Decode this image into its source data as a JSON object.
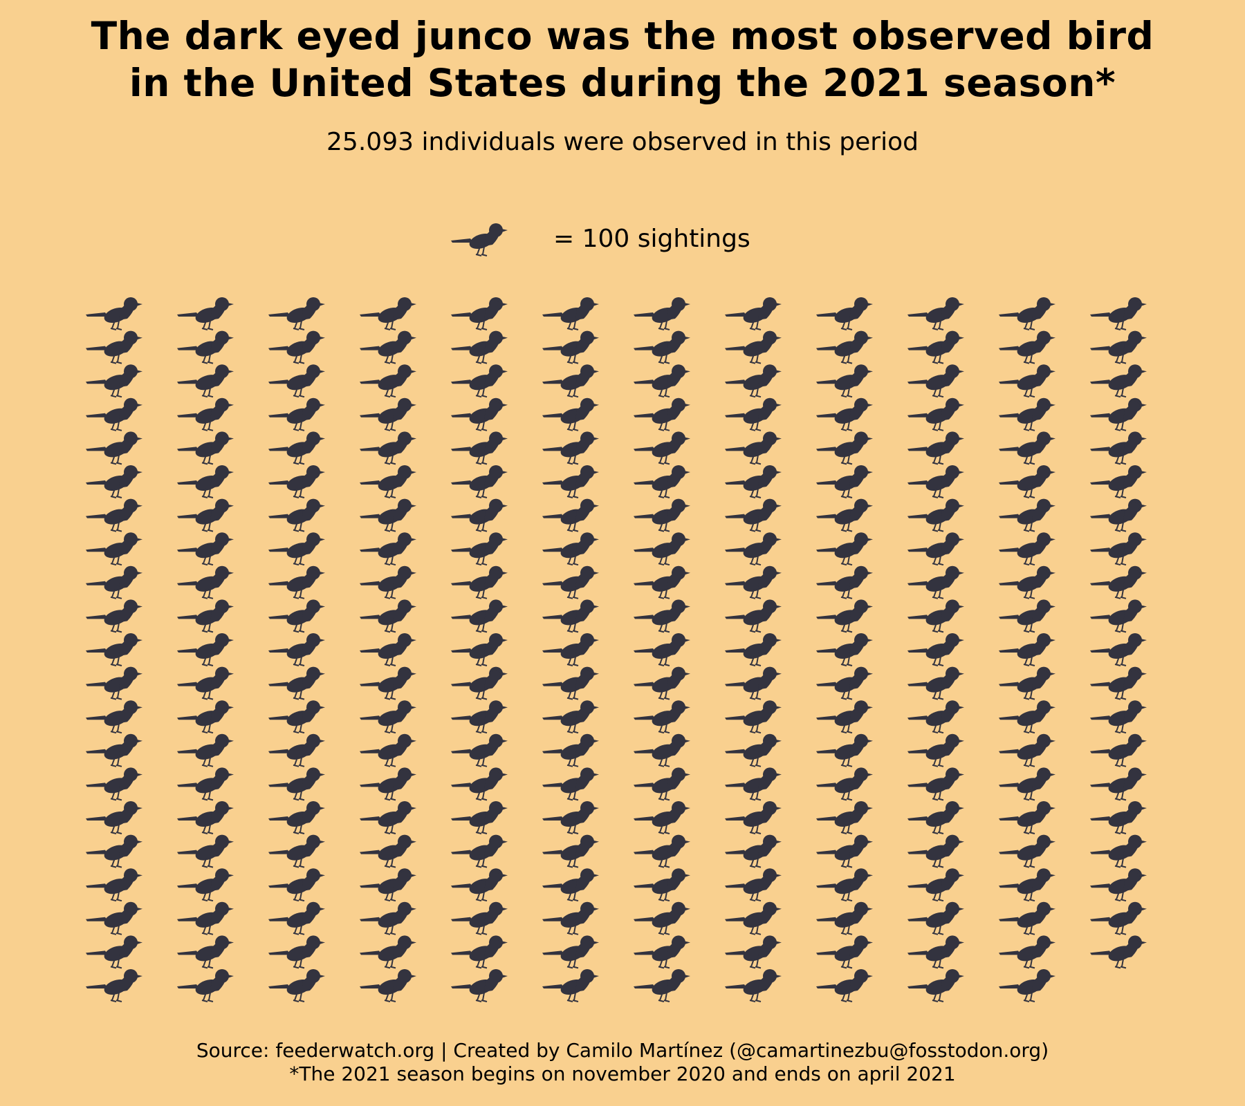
{
  "title_line1": "The dark eyed junco was the most observed bird",
  "title_line2": "in the United States during the 2021 season*",
  "subtitle": "25.093 individuals were observed in this period",
  "legend_text": "= 100 sightings",
  "source": "Source: feederwatch.org | Created by Camilo Martínez (@camartinezbu@fosstodon.org)",
  "footnote": "*The 2021 season begins on november 2020 and ends on april 2021",
  "colors": {
    "background": "#F9D08F",
    "bird": "#33333F",
    "text": "#000000"
  },
  "icon": "bird-silhouette-icon",
  "chart_data": {
    "type": "waffle",
    "unit_value": 100,
    "unit_label": "sightings",
    "total_individuals": 25093,
    "columns": 12,
    "icons_per_column": [
      21,
      21,
      21,
      21,
      21,
      21,
      21,
      21,
      21,
      21,
      21,
      20
    ],
    "total_icons": 251
  }
}
